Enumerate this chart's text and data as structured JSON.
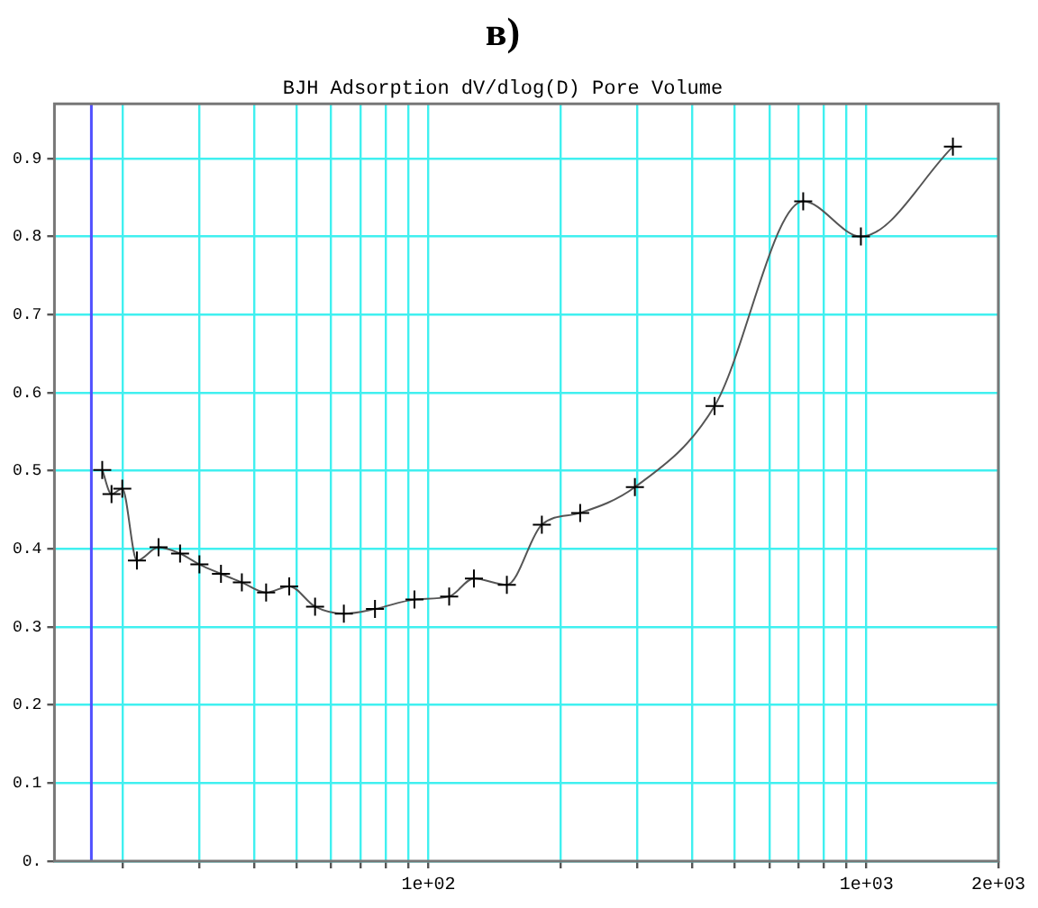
{
  "chart_data": {
    "type": "line",
    "title": "в)",
    "subtitle": "BJH Adsorption dV/dlog(D) Pore Volume",
    "x": [
      18.0,
      18.9,
      20.0,
      21.6,
      24.2,
      27.1,
      30.0,
      33.6,
      37.5,
      42.6,
      48.1,
      55.1,
      64.1,
      75.5,
      92.9,
      111.5,
      127,
      151,
      181.5,
      222,
      296,
      450,
      717,
      971,
      1575
    ],
    "series": [
      {
        "color": "#000000",
        "values": [
          0.501,
          0.47,
          0.477,
          0.385,
          0.402,
          0.394,
          0.38,
          0.368,
          0.357,
          0.344,
          0.352,
          0.326,
          0.317,
          0.323,
          0.335,
          0.339,
          0.362,
          0.354,
          0.431,
          0.446,
          0.479,
          0.583,
          0.845,
          0.8,
          0.915
        ]
      }
    ],
    "log": "x",
    "xlim": [
      14,
      2000
    ],
    "xticks": [
      {
        "value": 20,
        "label": null
      },
      {
        "value": 30,
        "label": null
      },
      {
        "value": 40,
        "label": null
      },
      {
        "value": 50,
        "label": null
      },
      {
        "value": 60,
        "label": null
      },
      {
        "value": 70,
        "label": null
      },
      {
        "value": 80,
        "label": null
      },
      {
        "value": 90,
        "label": null
      },
      {
        "value": 100,
        "label": "1e+02"
      },
      {
        "value": 200,
        "label": null
      },
      {
        "value": 300,
        "label": null
      },
      {
        "value": 400,
        "label": null
      },
      {
        "value": 500,
        "label": null
      },
      {
        "value": 600,
        "label": null
      },
      {
        "value": 700,
        "label": null
      },
      {
        "value": 800,
        "label": null
      },
      {
        "value": 900,
        "label": null
      },
      {
        "value": 1000,
        "label": "1e+03"
      },
      {
        "value": 2000,
        "label": "2e+03"
      }
    ],
    "ylim": [
      0,
      0.97
    ],
    "yticks": [
      {
        "value": 0,
        "label": "0."
      },
      0.1,
      0.2,
      0.3,
      0.4,
      0.5,
      0.6,
      0.7,
      0.8,
      0.9
    ],
    "ref_lines": [
      {
        "axis": "x",
        "value": 17,
        "color": "#5050ff"
      }
    ],
    "grid": true,
    "legend": false,
    "marker": "cross",
    "line_style": "solid"
  }
}
